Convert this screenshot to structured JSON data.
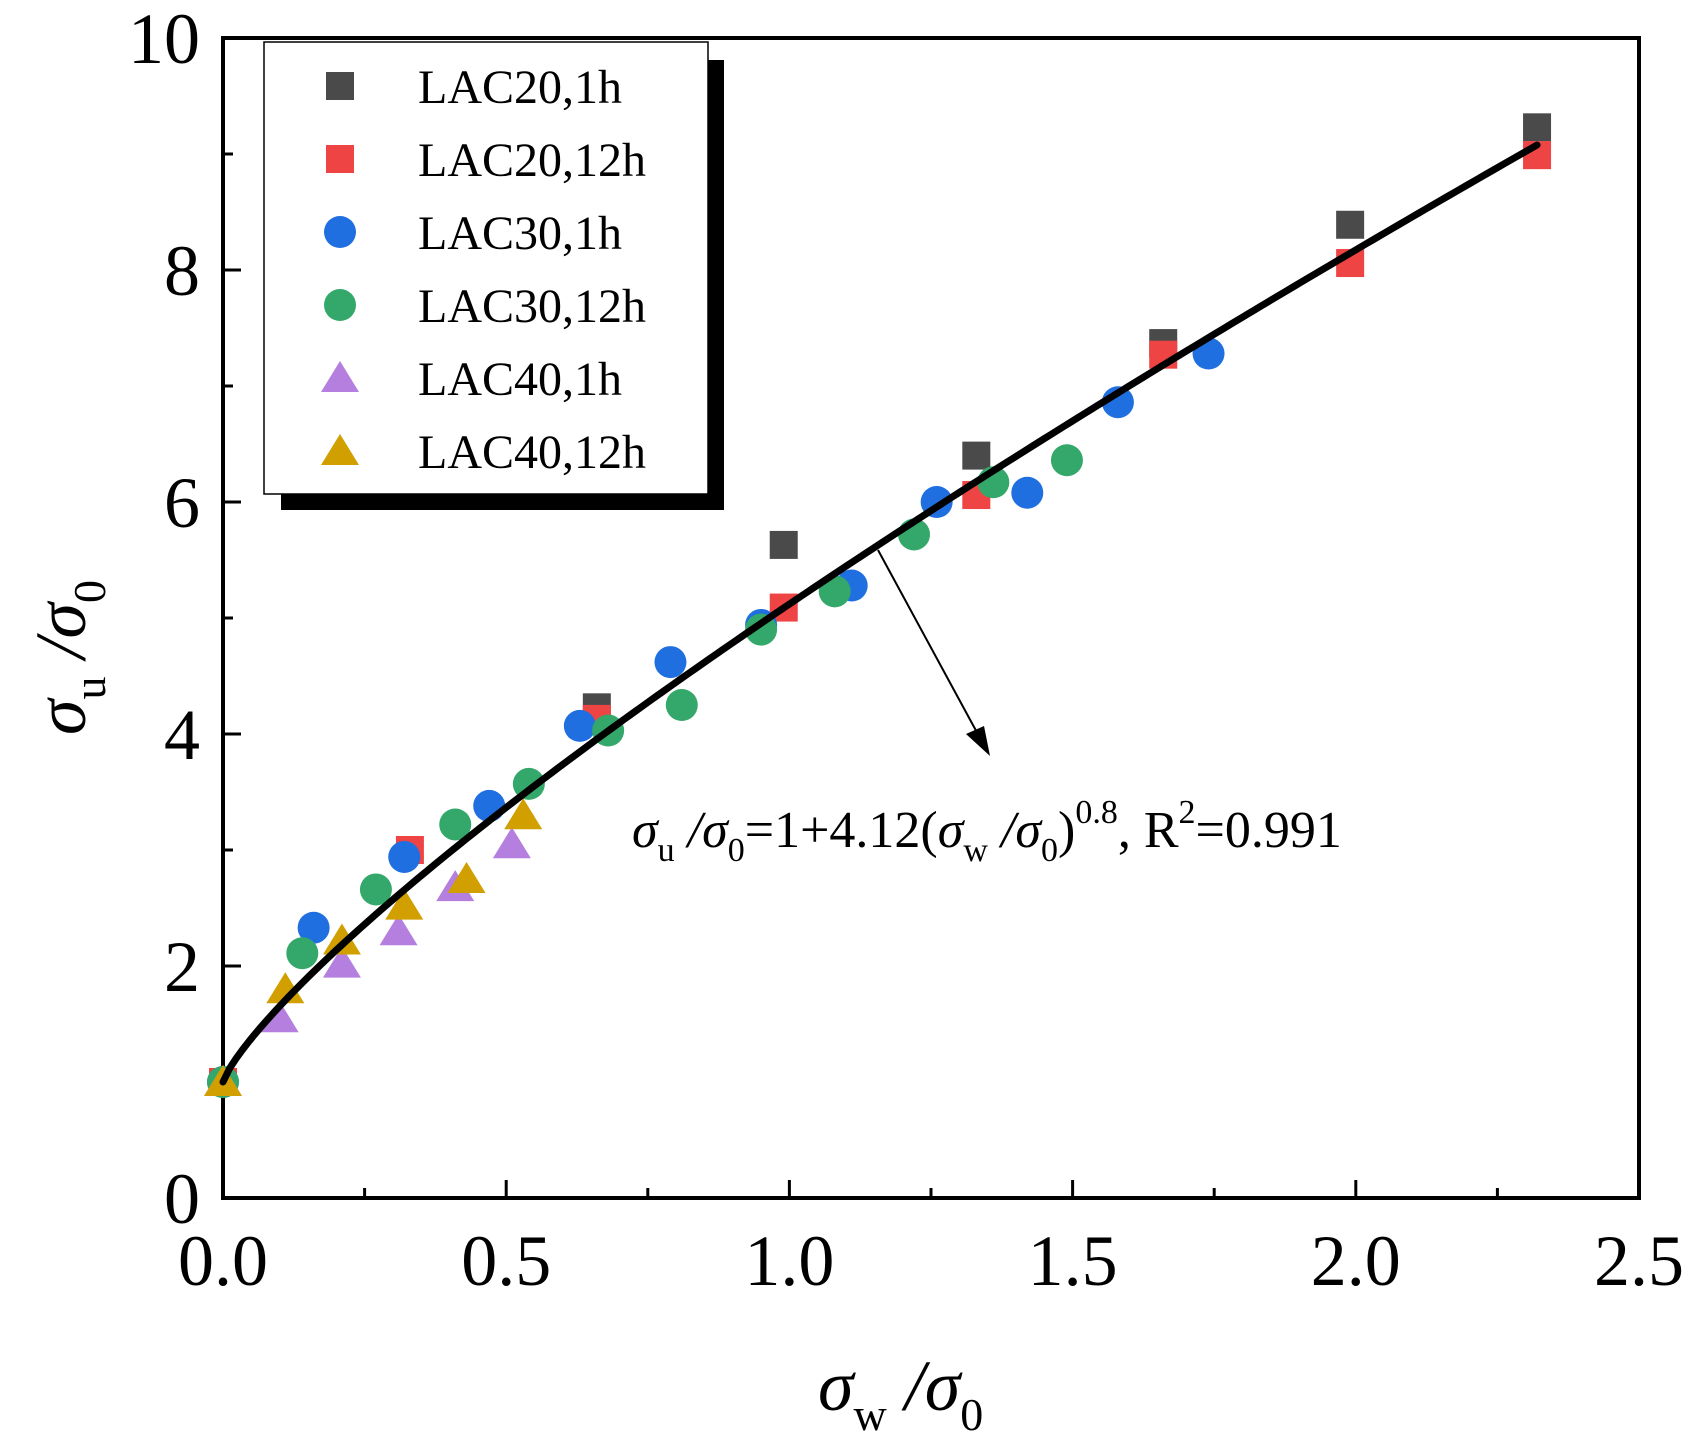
{
  "chart_data": {
    "type": "scatter",
    "xlabel": {
      "main": "σ",
      "sub": "w",
      "rest": " /σ",
      "sub2": "0"
    },
    "ylabel": {
      "main": "σ",
      "sub": "u",
      "rest": " /σ",
      "sub2": "0"
    },
    "xlim": [
      0,
      2.5
    ],
    "ylim": [
      0,
      10
    ],
    "x_ticks": [
      "0.0",
      "0.5",
      "1.0",
      "1.5",
      "2.0",
      "2.5"
    ],
    "x_tick_values": [
      0,
      0.5,
      1.0,
      1.5,
      2.0,
      2.5
    ],
    "y_ticks": [
      "0",
      "2",
      "4",
      "6",
      "8",
      "10"
    ],
    "y_tick_values": [
      0,
      2,
      4,
      6,
      8,
      10
    ],
    "legend_position": "top-left",
    "series": [
      {
        "name": "LAC20,1h",
        "marker": "square",
        "color": "#4a4a4a",
        "x": [
          0.0,
          0.66,
          0.99,
          1.33,
          1.66,
          1.99,
          2.32
        ],
        "y": [
          1.0,
          4.23,
          5.63,
          6.4,
          7.37,
          8.39,
          9.23
        ]
      },
      {
        "name": "LAC20,12h",
        "marker": "square",
        "color": "#ef4444",
        "x": [
          0.0,
          0.33,
          0.66,
          0.99,
          1.33,
          1.66,
          1.99,
          2.32
        ],
        "y": [
          1.0,
          3.0,
          4.13,
          5.09,
          6.06,
          7.27,
          8.06,
          8.99
        ]
      },
      {
        "name": "LAC30,1h",
        "marker": "circle",
        "color": "#1f6fe0",
        "x": [
          0.0,
          0.16,
          0.32,
          0.47,
          0.63,
          0.79,
          0.95,
          1.11,
          1.26,
          1.42,
          1.58,
          1.74
        ],
        "y": [
          1.0,
          2.33,
          2.94,
          3.38,
          4.07,
          4.62,
          4.94,
          5.28,
          6.0,
          6.08,
          6.86,
          7.28
        ]
      },
      {
        "name": "LAC30,12h",
        "marker": "circle",
        "color": "#34a86a",
        "x": [
          0.0,
          0.14,
          0.27,
          0.41,
          0.54,
          0.68,
          0.81,
          0.95,
          1.08,
          1.22,
          1.36,
          1.49
        ],
        "y": [
          1.0,
          2.11,
          2.66,
          3.22,
          3.57,
          4.03,
          4.25,
          4.9,
          5.23,
          5.72,
          6.17,
          6.36
        ]
      },
      {
        "name": "LAC40,1h",
        "marker": "triangle",
        "color": "#b57fe0",
        "x": [
          0.0,
          0.1,
          0.21,
          0.31,
          0.41,
          0.51
        ],
        "y": [
          1.0,
          1.55,
          2.02,
          2.3,
          2.68,
          3.05
        ]
      },
      {
        "name": "LAC40,12h",
        "marker": "triangle",
        "color": "#d19f00",
        "x": [
          0.0,
          0.11,
          0.21,
          0.32,
          0.43,
          0.53
        ],
        "y": [
          1.0,
          1.8,
          2.22,
          2.52,
          2.75,
          3.3
        ]
      }
    ],
    "fit": {
      "a": 1,
      "b": 4.12,
      "exponent": 0.8,
      "x_range": [
        0,
        2.32
      ],
      "equation": {
        "lhs_sym": "σ",
        "lhs_sub": "u",
        "lhs_rest": " /σ",
        "lhs_sub2": "0",
        "mid": "=1+4.12(",
        "in_sym": "σ",
        "in_sub": "w",
        "in_rest": " /σ",
        "in_sub2": "0",
        "close": ")",
        "sup": "0.8",
        "r2_label": ", R",
        "r2_sup": "2",
        "r2_value": "=0.991"
      }
    }
  }
}
